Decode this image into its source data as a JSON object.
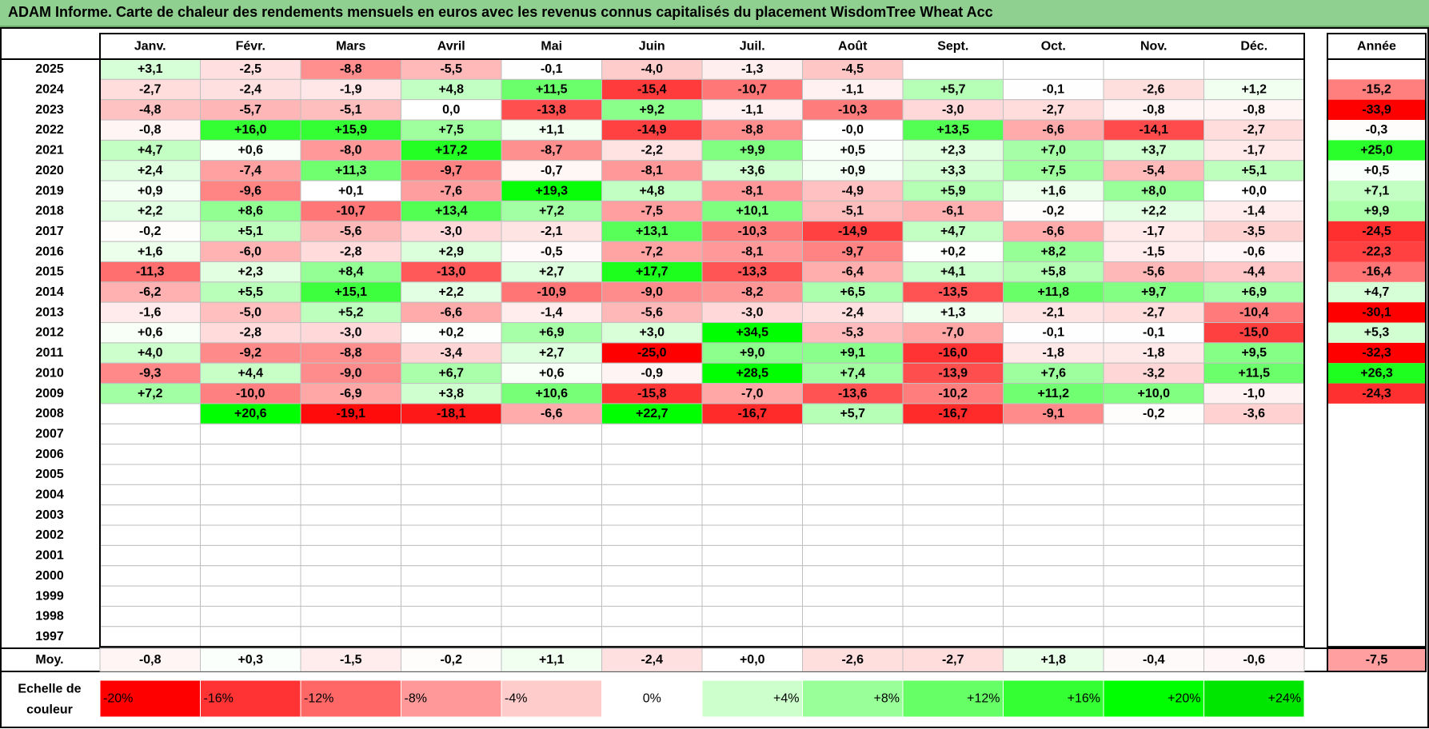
{
  "title": "ADAM Informe. Carte de chaleur des rendements mensuels en euros avec les revenus connus capitalisés du placement WisdomTree Wheat Acc",
  "chart_data": {
    "type": "heatmap",
    "months": [
      "Janv.",
      "Févr.",
      "Mars",
      "Avril",
      "Mai",
      "Juin",
      "Juil.",
      "Août",
      "Sept.",
      "Oct.",
      "Nov.",
      "Déc."
    ],
    "year_label": "Année",
    "avg_label": "Moy.",
    "scale_label": "Echelle de couleur",
    "rows": [
      {
        "year": "2025",
        "months": [
          "+3,1",
          "-2,5",
          "-8,8",
          "-5,5",
          "-0,1",
          "-4,0",
          "-1,3",
          "-4,5",
          "",
          "",
          "",
          ""
        ],
        "annual": ""
      },
      {
        "year": "2024",
        "months": [
          "-2,7",
          "-2,4",
          "-1,9",
          "+4,8",
          "+11,5",
          "-15,4",
          "-10,7",
          "-1,1",
          "+5,7",
          "-0,1",
          "-2,6",
          "+1,2"
        ],
        "annual": "-15,2"
      },
      {
        "year": "2023",
        "months": [
          "-4,8",
          "-5,7",
          "-5,1",
          "0,0",
          "-13,8",
          "+9,2",
          "-1,1",
          "-10,3",
          "-3,0",
          "-2,7",
          "-0,8",
          "-0,8"
        ],
        "annual": "-33,9"
      },
      {
        "year": "2022",
        "months": [
          "-0,8",
          "+16,0",
          "+15,9",
          "+7,5",
          "+1,1",
          "-14,9",
          "-8,8",
          "-0,0",
          "+13,5",
          "-6,6",
          "-14,1",
          "-2,7"
        ],
        "annual": "-0,3"
      },
      {
        "year": "2021",
        "months": [
          "+4,7",
          "+0,6",
          "-8,0",
          "+17,2",
          "-8,7",
          "-2,2",
          "+9,9",
          "+0,5",
          "+2,3",
          "+7,0",
          "+3,7",
          "-1,7"
        ],
        "annual": "+25,0"
      },
      {
        "year": "2020",
        "months": [
          "+2,4",
          "-7,4",
          "+11,3",
          "-9,7",
          "-0,7",
          "-8,1",
          "+3,6",
          "+0,9",
          "+3,3",
          "+7,5",
          "-5,4",
          "+5,1"
        ],
        "annual": "+0,5"
      },
      {
        "year": "2019",
        "months": [
          "+0,9",
          "-9,6",
          "+0,1",
          "-7,6",
          "+19,3",
          "+4,8",
          "-8,1",
          "-4,9",
          "+5,9",
          "+1,6",
          "+8,0",
          "+0,0"
        ],
        "annual": "+7,1"
      },
      {
        "year": "2018",
        "months": [
          "+2,2",
          "+8,6",
          "-10,7",
          "+13,4",
          "+7,2",
          "-7,5",
          "+10,1",
          "-5,1",
          "-6,1",
          "-0,2",
          "+2,2",
          "-1,4"
        ],
        "annual": "+9,9"
      },
      {
        "year": "2017",
        "months": [
          "-0,2",
          "+5,1",
          "-5,6",
          "-3,0",
          "-2,1",
          "+13,1",
          "-10,3",
          "-14,9",
          "+4,7",
          "-6,6",
          "-1,7",
          "-3,5"
        ],
        "annual": "-24,5"
      },
      {
        "year": "2016",
        "months": [
          "+1,6",
          "-6,0",
          "-2,8",
          "+2,9",
          "-0,5",
          "-7,2",
          "-8,1",
          "-9,7",
          "+0,2",
          "+8,2",
          "-1,5",
          "-0,6"
        ],
        "annual": "-22,3"
      },
      {
        "year": "2015",
        "months": [
          "-11,3",
          "+2,3",
          "+8,4",
          "-13,0",
          "+2,7",
          "+17,7",
          "-13,3",
          "-6,4",
          "+4,1",
          "+5,8",
          "-5,6",
          "-4,4"
        ],
        "annual": "-16,4"
      },
      {
        "year": "2014",
        "months": [
          "-6,2",
          "+5,5",
          "+15,1",
          "+2,2",
          "-10,9",
          "-9,0",
          "-8,2",
          "+6,5",
          "-13,5",
          "+11,8",
          "+9,7",
          "+6,9"
        ],
        "annual": "+4,7"
      },
      {
        "year": "2013",
        "months": [
          "-1,6",
          "-5,0",
          "+5,2",
          "-6,6",
          "-1,4",
          "-5,6",
          "-3,0",
          "-2,4",
          "+1,3",
          "-2,1",
          "-2,7",
          "-10,4"
        ],
        "annual": "-30,1"
      },
      {
        "year": "2012",
        "months": [
          "+0,6",
          "-2,8",
          "-3,0",
          "+0,2",
          "+6,9",
          "+3,0",
          "+34,5",
          "-5,3",
          "-7,0",
          "-0,1",
          "-0,1",
          "-15,0"
        ],
        "annual": "+5,3"
      },
      {
        "year": "2011",
        "months": [
          "+4,0",
          "-9,2",
          "-8,8",
          "-3,4",
          "+2,7",
          "-25,0",
          "+9,0",
          "+9,1",
          "-16,0",
          "-1,8",
          "-1,8",
          "+9,5"
        ],
        "annual": "-32,3"
      },
      {
        "year": "2010",
        "months": [
          "-9,3",
          "+4,4",
          "-9,0",
          "+6,7",
          "+0,6",
          "-0,9",
          "+28,5",
          "+7,4",
          "-13,9",
          "+7,6",
          "-3,2",
          "+11,5"
        ],
        "annual": "+26,3"
      },
      {
        "year": "2009",
        "months": [
          "+7,2",
          "-10,0",
          "-6,9",
          "+3,8",
          "+10,6",
          "-15,8",
          "-7,0",
          "-13,6",
          "-10,2",
          "+11,2",
          "+10,0",
          "-1,0"
        ],
        "annual": "-24,3"
      },
      {
        "year": "2008",
        "months": [
          "",
          "+20,6",
          "-19,1",
          "-18,1",
          "-6,6",
          "+22,7",
          "-16,7",
          "+5,7",
          "-16,7",
          "-9,1",
          "-0,2",
          "-3,6"
        ],
        "annual": ""
      },
      {
        "year": "2007",
        "months": [
          "",
          "",
          "",
          "",
          "",
          "",
          "",
          "",
          "",
          "",
          "",
          ""
        ],
        "annual": ""
      },
      {
        "year": "2006",
        "months": [
          "",
          "",
          "",
          "",
          "",
          "",
          "",
          "",
          "",
          "",
          "",
          ""
        ],
        "annual": ""
      },
      {
        "year": "2005",
        "months": [
          "",
          "",
          "",
          "",
          "",
          "",
          "",
          "",
          "",
          "",
          "",
          ""
        ],
        "annual": ""
      },
      {
        "year": "2004",
        "months": [
          "",
          "",
          "",
          "",
          "",
          "",
          "",
          "",
          "",
          "",
          "",
          ""
        ],
        "annual": ""
      },
      {
        "year": "2003",
        "months": [
          "",
          "",
          "",
          "",
          "",
          "",
          "",
          "",
          "",
          "",
          "",
          ""
        ],
        "annual": ""
      },
      {
        "year": "2002",
        "months": [
          "",
          "",
          "",
          "",
          "",
          "",
          "",
          "",
          "",
          "",
          "",
          ""
        ],
        "annual": ""
      },
      {
        "year": "2001",
        "months": [
          "",
          "",
          "",
          "",
          "",
          "",
          "",
          "",
          "",
          "",
          "",
          ""
        ],
        "annual": ""
      },
      {
        "year": "2000",
        "months": [
          "",
          "",
          "",
          "",
          "",
          "",
          "",
          "",
          "",
          "",
          "",
          ""
        ],
        "annual": ""
      },
      {
        "year": "1999",
        "months": [
          "",
          "",
          "",
          "",
          "",
          "",
          "",
          "",
          "",
          "",
          "",
          ""
        ],
        "annual": ""
      },
      {
        "year": "1998",
        "months": [
          "",
          "",
          "",
          "",
          "",
          "",
          "",
          "",
          "",
          "",
          "",
          ""
        ],
        "annual": ""
      },
      {
        "year": "1997",
        "months": [
          "",
          "",
          "",
          "",
          "",
          "",
          "",
          "",
          "",
          "",
          "",
          ""
        ],
        "annual": ""
      }
    ],
    "averages": [
      "-0,8",
      "+0,3",
      "-1,5",
      "-0,2",
      "+1,1",
      "-2,4",
      "+0,0",
      "-2,6",
      "-2,7",
      "+1,8",
      "-0,4",
      "-0,6"
    ],
    "annual_average": "-7,5",
    "scale": [
      {
        "label": "-20%",
        "color": "#ff0000"
      },
      {
        "label": "-16%",
        "color": "#ff3333"
      },
      {
        "label": "-12%",
        "color": "#ff6666"
      },
      {
        "label": "-8%",
        "color": "#ff9999"
      },
      {
        "label": "-4%",
        "color": "#ffcccc"
      },
      {
        "label": "0%",
        "color": "#ffffff"
      },
      {
        "label": "+4%",
        "color": "#ccffcc"
      },
      {
        "label": "+8%",
        "color": "#99ff99"
      },
      {
        "label": "+12%",
        "color": "#66ff66"
      },
      {
        "label": "+16%",
        "color": "#33ff33"
      },
      {
        "label": "+20%",
        "color": "#00ff00"
      },
      {
        "label": "+24%",
        "color": "#00e600"
      }
    ]
  }
}
